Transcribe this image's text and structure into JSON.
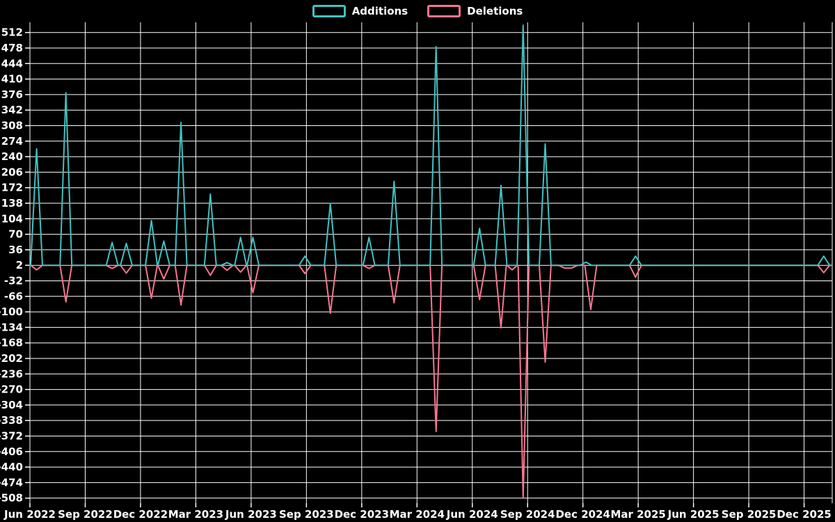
{
  "theme": {
    "background": "#000000",
    "grid_color": "#ffffff",
    "text_color": "#ffffff",
    "additions_color": "#41c1c1",
    "deletions_color": "#f97590"
  },
  "chart_data": {
    "type": "line",
    "title": "",
    "legend": [
      {
        "label": "Additions",
        "color": "#41c1c1"
      },
      {
        "label": "Deletions",
        "color": "#f97590"
      }
    ],
    "x_axis": {
      "labels": [
        "Jun 2022",
        "Sep 2022",
        "Dec 2022",
        "Mar 2023",
        "Jun 2023",
        "Sep 2023",
        "Dec 2023",
        "Mar 2024",
        "Jun 2024",
        "Sep 2024",
        "Dec 2024",
        "Mar 2025",
        "Jun 2025",
        "Sep 2025",
        "Dec 2025"
      ],
      "start": "2022-06-01",
      "end": "2026-01-17",
      "grid": true
    },
    "y_axis": {
      "ticks": [
        512,
        478,
        444,
        410,
        376,
        342,
        308,
        274,
        240,
        206,
        172,
        138,
        104,
        70,
        36,
        2,
        -32,
        -66,
        -100,
        -134,
        -168,
        -202,
        -236,
        -270,
        -304,
        -338,
        -372,
        -406,
        -440,
        -474,
        -508
      ],
      "min": -520,
      "max": 535,
      "grid": true
    },
    "baseline": 2,
    "events": [
      {
        "date": "2022-06-12",
        "additions": 257,
        "deletions": -8
      },
      {
        "date": "2022-07-30",
        "additions": 380,
        "deletions": -78
      },
      {
        "date": "2022-10-15",
        "additions": 52,
        "deletions": -5
      },
      {
        "date": "2022-11-08",
        "additions": 50,
        "deletions": -15
      },
      {
        "date": "2022-12-19",
        "additions": 100,
        "deletions": -70
      },
      {
        "date": "2023-01-09",
        "additions": 55,
        "deletions": -28
      },
      {
        "date": "2023-02-07",
        "additions": 315,
        "deletions": -85
      },
      {
        "date": "2023-03-25",
        "additions": 158,
        "deletions": -20
      },
      {
        "date": "2023-04-22",
        "additions": 8,
        "deletions": -9
      },
      {
        "date": "2023-05-14",
        "additions": 63,
        "deletions": -13
      },
      {
        "date": "2023-06-04",
        "additions": 63,
        "deletions": -58
      },
      {
        "date": "2023-08-29",
        "additions": 22,
        "deletions": -16
      },
      {
        "date": "2023-10-10",
        "additions": 137,
        "deletions": -103
      },
      {
        "date": "2023-12-13",
        "additions": 63,
        "deletions": -5
      },
      {
        "date": "2024-01-24",
        "additions": 186,
        "deletions": -80
      },
      {
        "date": "2024-04-02",
        "additions": 481,
        "deletions": -362
      },
      {
        "date": "2024-06-13",
        "additions": 83,
        "deletions": -73
      },
      {
        "date": "2024-07-18",
        "additions": 177,
        "deletions": -135
      },
      {
        "date": "2024-08-06",
        "deletions": -8
      },
      {
        "date": "2024-08-24",
        "additions": 528,
        "deletions": -508
      },
      {
        "date": "2024-09-30",
        "additions": 268,
        "deletions": -210
      },
      {
        "date": "2024-11-01",
        "date_end": "2024-11-13",
        "deletions": -4
      },
      {
        "date": "2024-12-06",
        "additions": 9
      },
      {
        "date": "2024-12-14",
        "deletions": -95
      },
      {
        "date": "2025-02-27",
        "additions": 22,
        "deletions": -24
      },
      {
        "date": "2026-01-03",
        "additions": 22,
        "deletions": -14
      }
    ]
  }
}
